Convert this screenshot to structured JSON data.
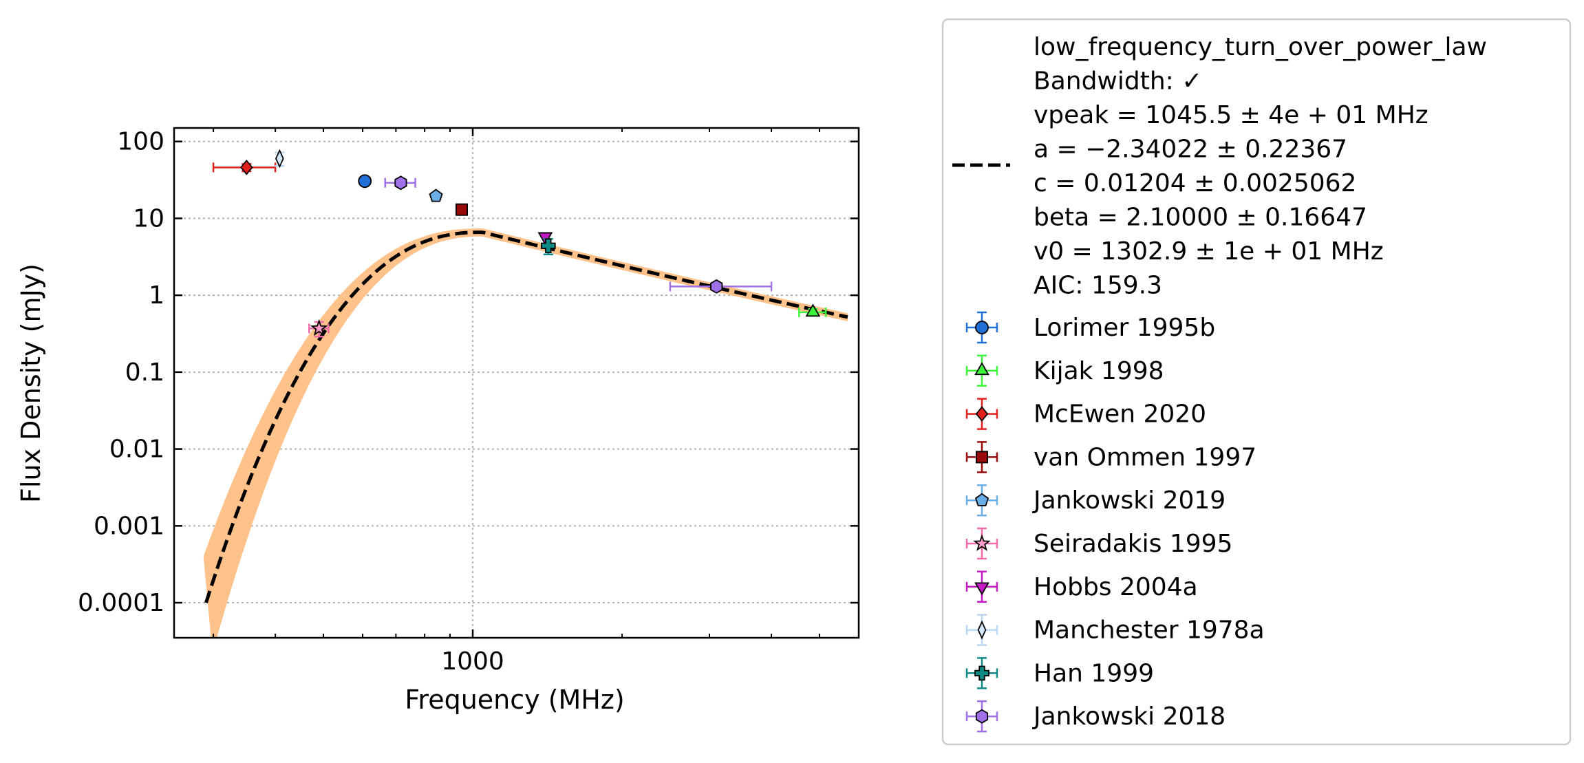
{
  "chart_data": {
    "type": "scatter",
    "xlabel": "Frequency (MHz)",
    "ylabel": "Flux Density (mJy)",
    "xscale": "log",
    "yscale": "log",
    "xlim": [
      250,
      6000
    ],
    "ylim": [
      3.5e-05,
      150
    ],
    "x_ticks": [
      {
        "value": 1000,
        "label": "1000"
      }
    ],
    "y_ticks": [
      {
        "value": 100,
        "label": "100"
      },
      {
        "value": 10,
        "label": "10"
      },
      {
        "value": 1,
        "label": "1"
      },
      {
        "value": 0.1,
        "label": "0.1"
      },
      {
        "value": 0.01,
        "label": "0.01"
      },
      {
        "value": 0.001,
        "label": "0.001"
      },
      {
        "value": 0.0001,
        "label": "0.0001"
      }
    ],
    "grid": true,
    "legend_position": "outside-right",
    "fit": {
      "label_lines": [
        "low_frequency_turn_over_power_law",
        "Bandwidth: ✓",
        "vpeak = 1045.5 ± 4e + 01 MHz",
        "a = −2.34022 ± 0.22367",
        "c = 0.01204 ± 0.0025062",
        "beta = 2.10000 ± 0.16647",
        "v0 = 1302.9 ± 1e + 01 MHz",
        "AIC: 159.3"
      ],
      "model": "low_frequency_turn_over_power_law",
      "params": {
        "vpeak": 1045.5,
        "a": -2.34022,
        "c": 0.01204,
        "beta": 2.1,
        "v0": 1302.9
      },
      "x_range": [
        290,
        5700
      ],
      "line_color": "#000000",
      "band_color": "#ffc28a"
    },
    "series": [
      {
        "name": "Lorimer 1995b",
        "marker": "circle",
        "color": "#1f6fd6",
        "ecolor": "#1f6fd6",
        "points": [
          {
            "x": 606,
            "y": 30.5
          }
        ]
      },
      {
        "name": "Kijak 1998",
        "marker": "triangle-up",
        "color": "#3ef53e",
        "ecolor": "#3ef53e",
        "points": [
          {
            "x": 4850,
            "y": 0.6,
            "xerr": 300,
            "yerr": 0.06
          }
        ]
      },
      {
        "name": "McEwen 2020",
        "marker": "diamond",
        "color": "#e3201b",
        "ecolor": "#e3201b",
        "points": [
          {
            "x": 350,
            "y": 46,
            "xerr_lo": 50,
            "xerr_hi": 50,
            "yerr": 5
          }
        ]
      },
      {
        "name": "van Ommen 1997",
        "marker": "square",
        "color": "#9a0a0a",
        "ecolor": "#9a0a0a",
        "points": [
          {
            "x": 950,
            "y": 13
          }
        ]
      },
      {
        "name": "Jankowski 2019",
        "marker": "pentagon",
        "color": "#6aaee8",
        "ecolor": "#6aaee8",
        "points": [
          {
            "x": 843,
            "y": 19.5
          }
        ]
      },
      {
        "name": "Seiradakis 1995",
        "marker": "star",
        "color": "#ff99c8",
        "ecolor": "#f06aa8",
        "points": [
          {
            "x": 490,
            "y": 0.37,
            "xerr": 22,
            "yerr": 0.08
          }
        ]
      },
      {
        "name": "Hobbs 2004a",
        "marker": "triangle-down",
        "color": "#c418c4",
        "ecolor": "#c418c4",
        "points": [
          {
            "x": 1400,
            "y": 5.8
          }
        ]
      },
      {
        "name": "Manchester 1978a",
        "marker": "thin-diamond",
        "color": "#d6e9fb",
        "ecolor": "#b9d6f2",
        "points": [
          {
            "x": 408,
            "y": 60,
            "yerr": 12
          }
        ]
      },
      {
        "name": "Han 1999",
        "marker": "plus",
        "color": "#0f8b87",
        "ecolor": "#0f8b87",
        "points": [
          {
            "x": 1420,
            "y": 4.4,
            "yerr": 1.0
          }
        ]
      },
      {
        "name": "Jankowski 2018",
        "marker": "hexagon",
        "color": "#a070e8",
        "ecolor": "#a070e8",
        "points": [
          {
            "x": 716,
            "y": 29,
            "xerr": 50,
            "yerr": 3
          },
          {
            "x": 3100,
            "y": 1.3,
            "xerr_lo": 600,
            "xerr_hi": 900,
            "yerr": 0.1
          }
        ]
      }
    ]
  }
}
